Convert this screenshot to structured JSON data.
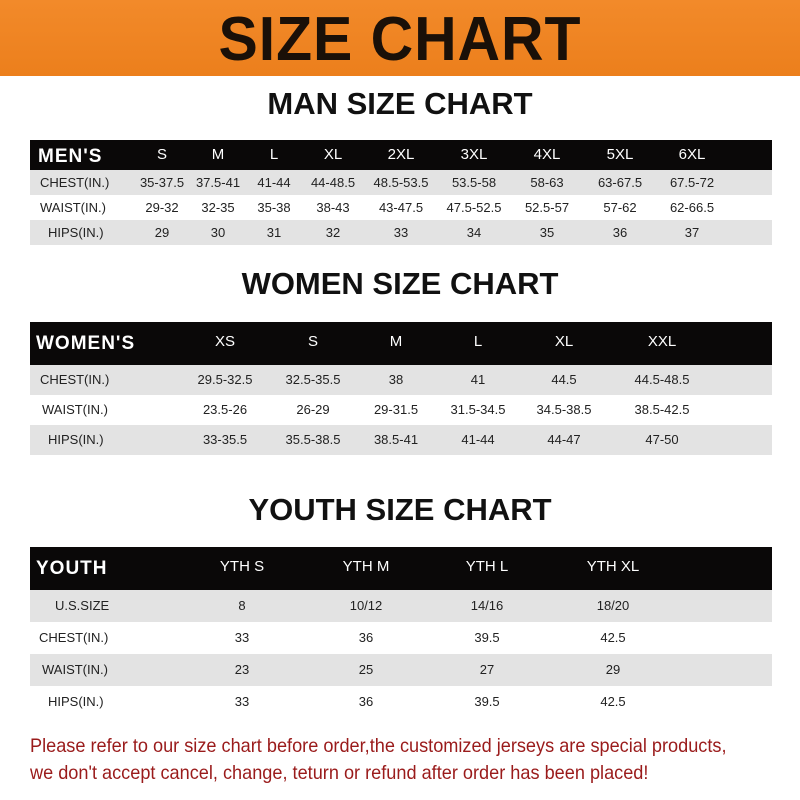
{
  "banner": {
    "title": "SIZE CHART",
    "color": "#ee8422"
  },
  "men": {
    "title": "MAN SIZE CHART",
    "header": [
      "MEN'S",
      "S",
      "M",
      "L",
      "XL",
      "2XL",
      "3XL",
      "4XL",
      "5XL",
      "6XL"
    ],
    "rows": [
      [
        "CHEST(IN.)",
        "35-37.5",
        "37.5-41",
        "41-44",
        "44-48.5",
        "48.5-53.5",
        "53.5-58",
        "58-63",
        "63-67.5",
        "67.5-72"
      ],
      [
        "WAIST(IN.)",
        "29-32",
        "32-35",
        "35-38",
        "38-43",
        "43-47.5",
        "47.5-52.5",
        "52.5-57",
        "57-62",
        "62-66.5"
      ],
      [
        "HIPS(IN.)",
        "29",
        "30",
        "31",
        "32",
        "33",
        "34",
        "35",
        "36",
        "37"
      ]
    ]
  },
  "women": {
    "title": "WOMEN SIZE CHART",
    "header": [
      "WOMEN'S",
      "XS",
      "S",
      "M",
      "L",
      "XL",
      "XXL"
    ],
    "rows": [
      [
        "CHEST(IN.)",
        "29.5-32.5",
        "32.5-35.5",
        "38",
        "41",
        "44.5",
        "44.5-48.5"
      ],
      [
        "WAIST(IN.)",
        "23.5-26",
        "26-29",
        "29-31.5",
        "31.5-34.5",
        "34.5-38.5",
        "38.5-42.5"
      ],
      [
        "HIPS(IN.)",
        "33-35.5",
        "35.5-38.5",
        "38.5-41",
        "41-44",
        "44-47",
        "47-50"
      ]
    ]
  },
  "youth": {
    "title": "YOUTH SIZE CHART",
    "header": [
      "YOUTH",
      "YTH S",
      "YTH M",
      "YTH L",
      "YTH XL"
    ],
    "rows": [
      [
        "U.S.SIZE",
        "8",
        "10/12",
        "14/16",
        "18/20"
      ],
      [
        "CHEST(IN.)",
        "33",
        "36",
        "39.5",
        "42.5"
      ],
      [
        "WAIST(IN.)",
        "23",
        "25",
        "27",
        "29"
      ],
      [
        "HIPS(IN.)",
        "33",
        "36",
        "39.5",
        "42.5"
      ]
    ]
  },
  "note": {
    "line1": "Please refer to our size chart before order,the customized jerseys are special products,",
    "line2": "we don't accept cancel, change, teturn or refund after order has been placed!",
    "color": "#9a1b1b"
  }
}
